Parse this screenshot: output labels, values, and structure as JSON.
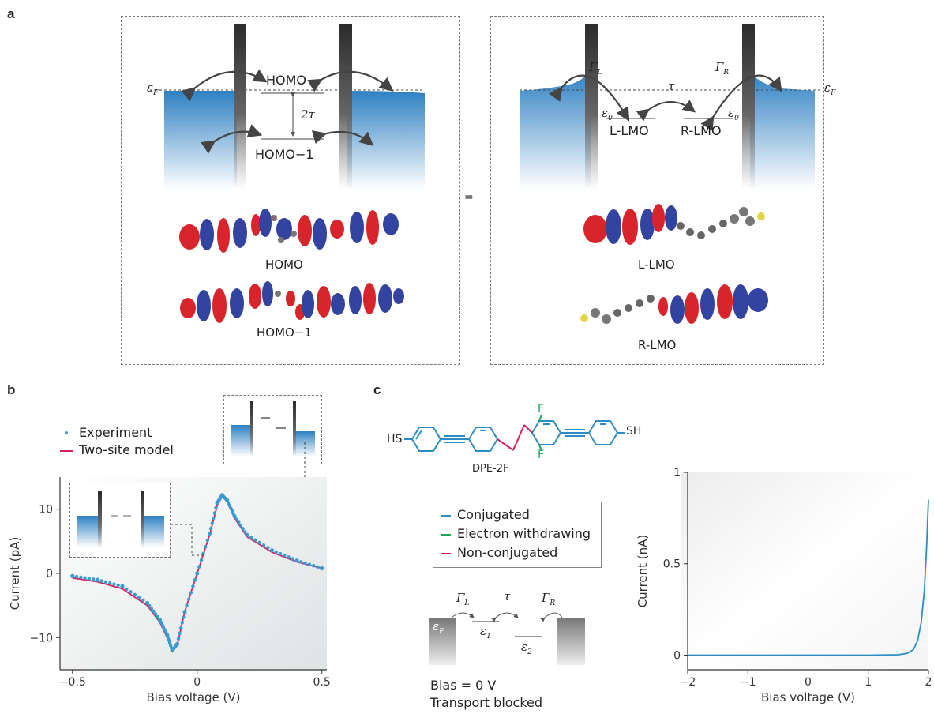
{
  "panels": {
    "a": "a",
    "b": "b",
    "c": "c"
  },
  "panel_a": {
    "left": {
      "fermi": "ε",
      "fermi_sub": "F",
      "homo": "HOMO",
      "homo1": "HOMO−1",
      "splitting": "2τ",
      "orbital_top_label": "HOMO",
      "orbital_bottom_label": "HOMO−1"
    },
    "equals": "=",
    "right": {
      "gamma_l": "Γ",
      "gamma_l_sub": "L",
      "gamma_r": "Γ",
      "gamma_r_sub": "R",
      "tau": "τ",
      "eps0": "ε",
      "eps0_sub": "0",
      "fermi": "ε",
      "fermi_sub": "F",
      "l_lmo": "L-LMO",
      "r_lmo": "R-LMO",
      "orbital_top_label": "L-LMO",
      "orbital_bottom_label": "R-LMO"
    }
  },
  "panel_b": {
    "legend": [
      "Experiment",
      "Two-site model"
    ],
    "colors": {
      "experiment": "#3a9bd0",
      "model": "#d4225f"
    }
  },
  "panel_c": {
    "molecule": {
      "hs_left": "HS",
      "sh_right": "SH",
      "f_top": "F",
      "f_bottom": "F",
      "name": "DPE-2F"
    },
    "legend": [
      {
        "label": "Conjugated",
        "color": "#2c8ec4"
      },
      {
        "label": "Electron withdrawing",
        "color": "#19a45a"
      },
      {
        "label": "Non-conjugated",
        "color": "#d4225f"
      }
    ],
    "diagram": {
      "gamma_l": "Γ",
      "gamma_l_sub": "L",
      "tau": "τ",
      "gamma_r": "Γ",
      "gamma_r_sub": "R",
      "eps_f": "ε",
      "eps_f_sub": "F",
      "eps1": "ε",
      "eps1_sub": "1",
      "eps2": "ε",
      "eps2_sub": "2",
      "bias": "Bias = 0 V",
      "status": "Transport blocked"
    }
  },
  "chart_data": [
    {
      "type": "line",
      "id": "panel-b-chart",
      "xlabel": "Bias voltage (V)",
      "ylabel": "Current (pA)",
      "xlim": [
        -0.55,
        0.52
      ],
      "ylim": [
        -15,
        15
      ],
      "xticks": [
        -0.5,
        0,
        0.5
      ],
      "xtick_labels": [
        "−0.5",
        "0",
        "0.5"
      ],
      "yticks": [
        -10,
        0,
        10
      ],
      "ytick_labels": [
        "−10",
        "0",
        "10"
      ],
      "series": [
        {
          "name": "Two-site model",
          "x": [
            -0.5,
            -0.4,
            -0.3,
            -0.2,
            -0.15,
            -0.12,
            -0.1,
            -0.08,
            -0.05,
            0,
            0.05,
            0.08,
            0.1,
            0.12,
            0.15,
            0.2,
            0.3,
            0.4,
            0.5
          ],
          "y": [
            -0.7,
            -1.3,
            -2.4,
            -5,
            -7.6,
            -10,
            -12,
            -11.2,
            -6,
            0,
            6,
            10.5,
            12,
            11.2,
            8.6,
            5.7,
            3.3,
            1.8,
            0.8
          ]
        },
        {
          "name": "Experiment",
          "x": [
            -0.5,
            -0.4,
            -0.3,
            -0.2,
            -0.15,
            -0.12,
            -0.1,
            -0.08,
            -0.05,
            0,
            0.05,
            0.08,
            0.1,
            0.12,
            0.15,
            0.2,
            0.3,
            0.4,
            0.5
          ],
          "y": [
            -0.4,
            -1,
            -2,
            -4.6,
            -7.2,
            -9.6,
            -12,
            -11,
            -6,
            0,
            6.2,
            11,
            12.2,
            11.4,
            8.9,
            6,
            3.6,
            2,
            0.8
          ]
        }
      ]
    },
    {
      "type": "line",
      "id": "panel-c-chart",
      "xlabel": "Bias voltage (V)",
      "ylabel": "Current (nA)",
      "xlim": [
        -2,
        2
      ],
      "ylim": [
        -0.08,
        1
      ],
      "xticks": [
        -2,
        -1,
        0,
        1,
        2
      ],
      "xtick_labels": [
        "−2",
        "−1",
        "0",
        "1",
        "2"
      ],
      "yticks": [
        0,
        0.5,
        1
      ],
      "ytick_labels": [
        "0",
        "0.5",
        "1"
      ],
      "series": [
        {
          "name": "",
          "x": [
            -2,
            -1,
            0,
            1,
            1.5,
            1.65,
            1.75,
            1.82,
            1.88,
            1.93,
            1.97,
            2.0
          ],
          "y": [
            0,
            0,
            0,
            0,
            0.002,
            0.01,
            0.03,
            0.08,
            0.18,
            0.35,
            0.6,
            0.85
          ]
        }
      ]
    }
  ]
}
